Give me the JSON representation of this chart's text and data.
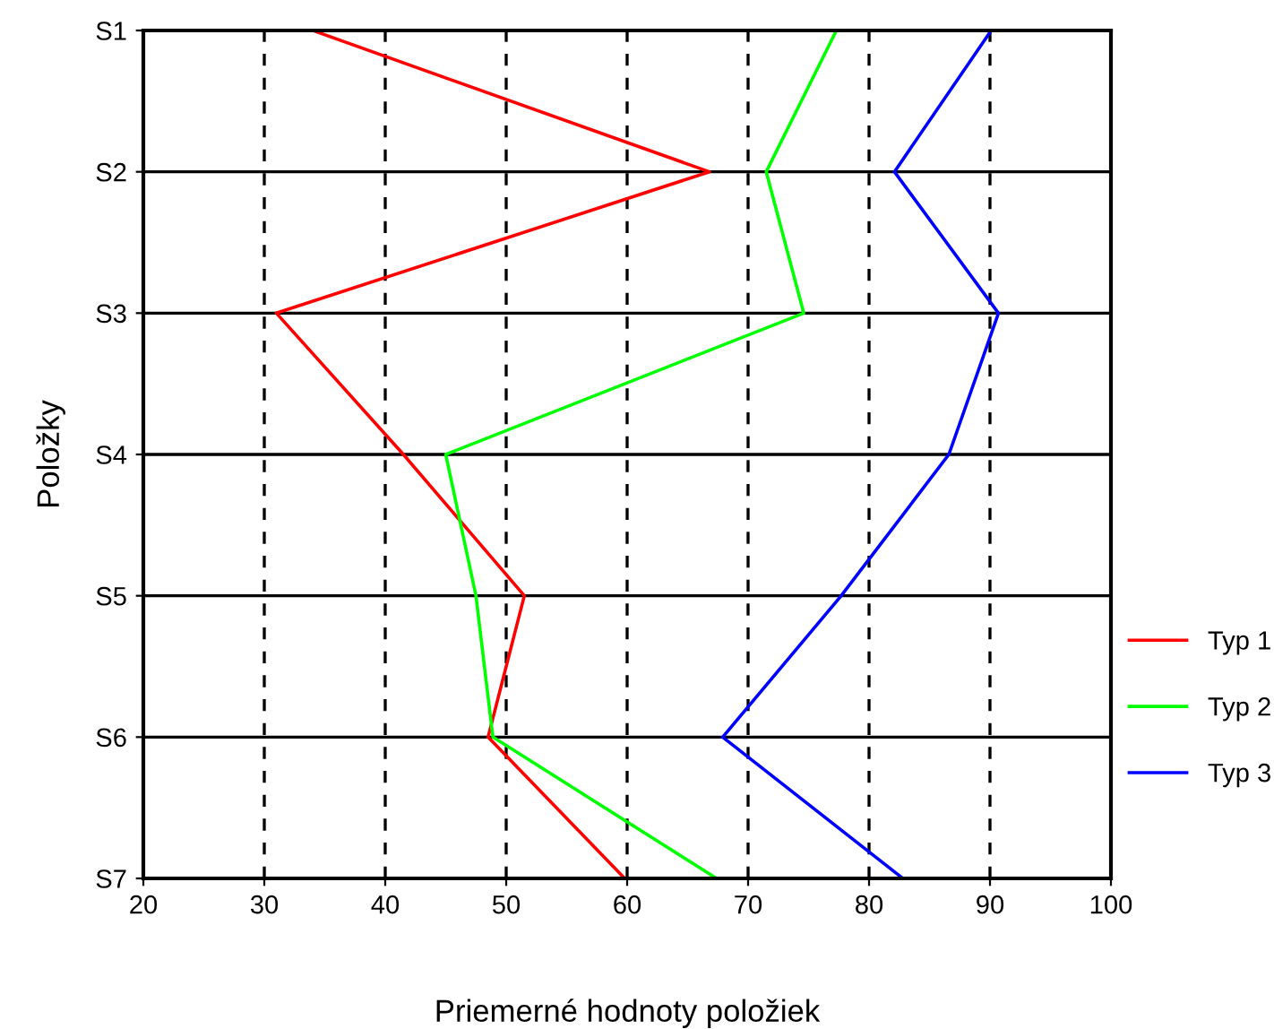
{
  "chart_data": {
    "type": "line",
    "orientation": "horizontal",
    "xlabel": "Priemerné hodnoty položiek",
    "ylabel": "Položky",
    "categories": [
      "S1",
      "S2",
      "S3",
      "S4",
      "S5",
      "S6",
      "S7"
    ],
    "series": [
      {
        "name": "Typ 1",
        "color": "#ff0000",
        "values": [
          34.0,
          66.8,
          31.0,
          41.5,
          51.5,
          48.5,
          59.8
        ]
      },
      {
        "name": "Typ 2",
        "color": "#00ff00",
        "values": [
          77.3,
          71.5,
          74.6,
          45.0,
          47.5,
          48.9,
          67.4
        ]
      },
      {
        "name": "Typ 3",
        "color": "#0000ff",
        "values": [
          90.1,
          82.1,
          90.7,
          86.6,
          77.7,
          67.9,
          82.8
        ]
      }
    ],
    "xlim": [
      20,
      100
    ],
    "xticks": [
      20,
      30,
      40,
      50,
      60,
      70,
      80,
      90,
      100
    ],
    "grid": true,
    "legend": "right",
    "marker": "none",
    "line_style": "solid"
  }
}
